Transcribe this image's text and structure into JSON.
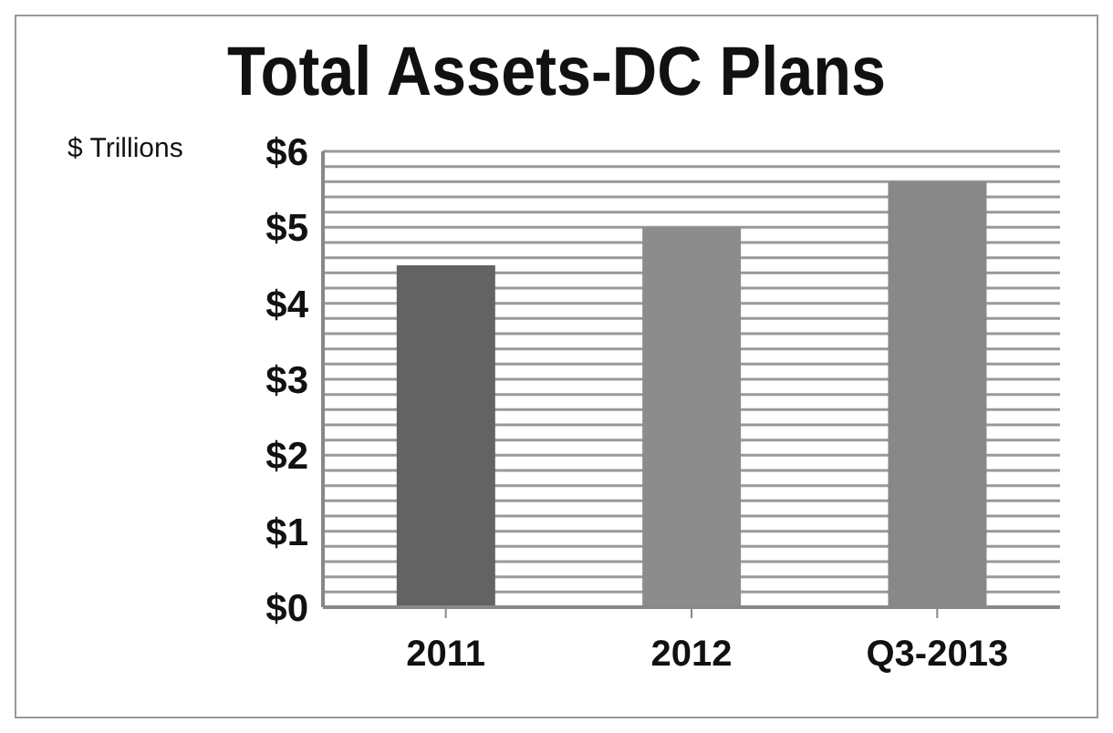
{
  "chart_data": {
    "type": "bar",
    "title": "Total Assets-DC Plans",
    "ylabel": "$ Trillions",
    "categories": [
      "2011",
      "2012",
      "Q3-2013"
    ],
    "values": [
      4.5,
      5.0,
      5.6
    ],
    "colors": [
      "#636363",
      "#8c8c8c",
      "#888888"
    ],
    "ylim": [
      0,
      6
    ],
    "yticks": [
      {
        "value": 0,
        "label": "$0"
      },
      {
        "value": 0.2,
        "label": null
      },
      {
        "value": 0.4,
        "label": null
      },
      {
        "value": 0.6,
        "label": null
      },
      {
        "value": 0.8,
        "label": null
      },
      {
        "value": 1,
        "label": "$1"
      },
      {
        "value": 1.2,
        "label": null
      },
      {
        "value": 1.4,
        "label": null
      },
      {
        "value": 1.6,
        "label": null
      },
      {
        "value": 1.8,
        "label": null
      },
      {
        "value": 2,
        "label": "$2"
      },
      {
        "value": 2.2,
        "label": null
      },
      {
        "value": 2.4,
        "label": null
      },
      {
        "value": 2.6,
        "label": null
      },
      {
        "value": 2.8,
        "label": null
      },
      {
        "value": 3,
        "label": "$3"
      },
      {
        "value": 3.2,
        "label": null
      },
      {
        "value": 3.4,
        "label": null
      },
      {
        "value": 3.6,
        "label": null
      },
      {
        "value": 3.8,
        "label": null
      },
      {
        "value": 4,
        "label": "$4"
      },
      {
        "value": 4.2,
        "label": null
      },
      {
        "value": 4.4,
        "label": null
      },
      {
        "value": 4.6,
        "label": null
      },
      {
        "value": 4.8,
        "label": null
      },
      {
        "value": 5,
        "label": "$5"
      },
      {
        "value": 5.2,
        "label": null
      },
      {
        "value": 5.4,
        "label": null
      },
      {
        "value": 5.6,
        "label": null
      },
      {
        "value": 5.8,
        "label": null
      },
      {
        "value": 6,
        "label": "$6"
      }
    ],
    "grid": "y"
  }
}
